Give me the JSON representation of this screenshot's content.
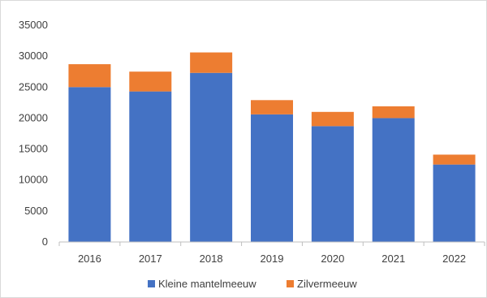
{
  "chart_data": {
    "type": "bar",
    "stacked": true,
    "categories": [
      "2016",
      "2017",
      "2018",
      "2019",
      "2020",
      "2021",
      "2022"
    ],
    "series": [
      {
        "name": "Kleine mantelmeeuw",
        "color": "#4472C4",
        "values": [
          25000,
          24300,
          27300,
          20600,
          18700,
          20000,
          12500
        ]
      },
      {
        "name": "Zilvermeeuw",
        "color": "#ED7D31",
        "values": [
          3700,
          3200,
          3300,
          2300,
          2300,
          1900,
          1600
        ]
      }
    ],
    "ylim": [
      0,
      35000
    ],
    "yticks": [
      "0",
      "5000",
      "10000",
      "15000",
      "20000",
      "25000",
      "30000",
      "35000"
    ],
    "grid": false,
    "legend_position": "bottom"
  }
}
